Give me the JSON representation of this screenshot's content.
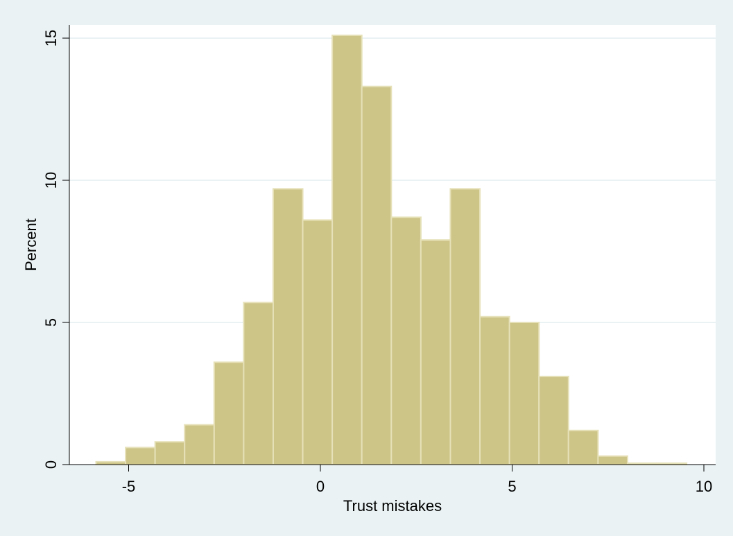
{
  "chart_data": {
    "type": "bar",
    "subtype": "histogram",
    "title": "",
    "xlabel": "Trust mistakes",
    "ylabel": "Percent",
    "xlim": [
      -6.2,
      10.0
    ],
    "ylim": [
      0,
      15.5
    ],
    "xticks": [
      -5,
      0,
      5,
      10
    ],
    "yticks": [
      0,
      5,
      10,
      15
    ],
    "grid": "horizontal",
    "bar_color": "#cdc488",
    "bar_edge_color": "#e6e1b8",
    "plot_background": "#ffffff",
    "page_background": "#eaf2f3",
    "bins": [
      {
        "x0": -5.85,
        "x1": -5.08,
        "value": 0.1
      },
      {
        "x0": -5.08,
        "x1": -4.31,
        "value": 0.6
      },
      {
        "x0": -4.31,
        "x1": -3.54,
        "value": 0.8
      },
      {
        "x0": -3.54,
        "x1": -2.77,
        "value": 1.4
      },
      {
        "x0": -2.77,
        "x1": -2.0,
        "value": 3.6
      },
      {
        "x0": -2.0,
        "x1": -1.23,
        "value": 5.7
      },
      {
        "x0": -1.23,
        "x1": -0.46,
        "value": 9.7
      },
      {
        "x0": -0.46,
        "x1": 0.31,
        "value": 8.6
      },
      {
        "x0": 0.31,
        "x1": 1.08,
        "value": 15.1
      },
      {
        "x0": 1.08,
        "x1": 1.85,
        "value": 13.3
      },
      {
        "x0": 1.85,
        "x1": 2.62,
        "value": 8.7
      },
      {
        "x0": 2.62,
        "x1": 3.39,
        "value": 7.9
      },
      {
        "x0": 3.39,
        "x1": 4.16,
        "value": 9.7
      },
      {
        "x0": 4.16,
        "x1": 4.93,
        "value": 5.2
      },
      {
        "x0": 4.93,
        "x1": 5.7,
        "value": 5.0
      },
      {
        "x0": 5.7,
        "x1": 6.47,
        "value": 3.1
      },
      {
        "x0": 6.47,
        "x1": 7.24,
        "value": 1.2
      },
      {
        "x0": 7.24,
        "x1": 8.01,
        "value": 0.3
      },
      {
        "x0": 8.01,
        "x1": 8.78,
        "value": 0.05
      },
      {
        "x0": 8.78,
        "x1": 9.55,
        "value": 0.05
      }
    ]
  }
}
